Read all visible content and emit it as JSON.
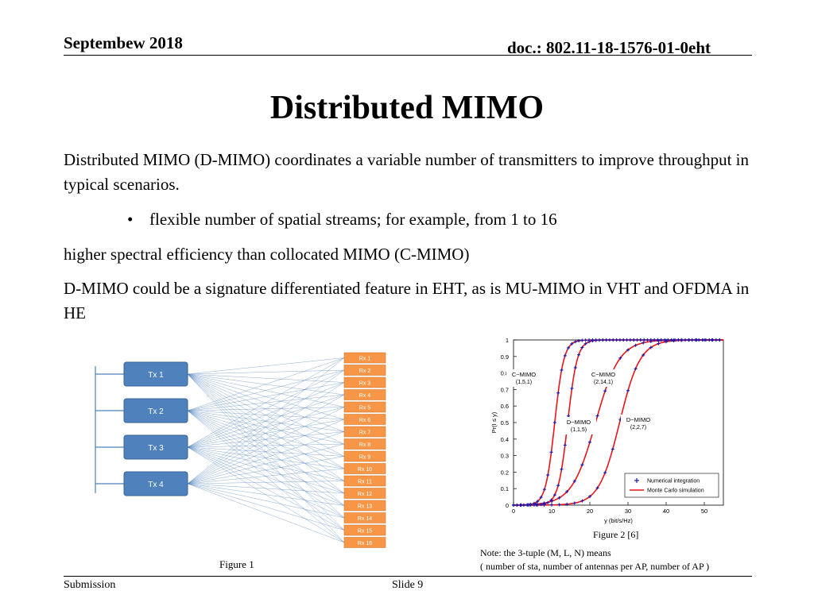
{
  "header": {
    "date": "Septembew 2018",
    "doc": "doc.: 802.11-18-1576-01-0eht"
  },
  "title": "Distributed MIMO",
  "body": {
    "p1": "Distributed MIMO (D-MIMO) coordinates a variable number of transmitters to improve throughput in typical scenarios.",
    "bullet": "flexible number of spatial streams; for example, from 1 to 16",
    "bullet_marker": "•",
    "p2": "higher spectral efficiency than collocated MIMO (C-MIMO)",
    "p3": "D-MIMO could be a signature differentiated feature in EHT, as is MU-MIMO in VHT and OFDMA in HE"
  },
  "figure1": {
    "caption": "Figure 1",
    "tx": [
      "Tx 1",
      "Tx 2",
      "Tx 3",
      "Tx 4"
    ],
    "rx": [
      "Rx 1",
      "Rx 2",
      "Rx 3",
      "Rx 4",
      "Rx 5",
      "Rx 6",
      "Rx 7",
      "Rx 8",
      "Rx 9",
      "Rx 10",
      "Rx 11",
      "Rx 12",
      "Rx 13",
      "Rx 14",
      "Rx 15",
      "Rx 16"
    ],
    "colors": {
      "tx": "#4f81bd",
      "rx": "#f79646",
      "lines": "#4f81bd"
    }
  },
  "figure2": {
    "caption": "Figure 2 [6]",
    "note_line1": "Note: the 3-tuple (M, L, N) means",
    "note_line2": "( number of sta, number of antennas per AP, number of AP )"
  },
  "chart_data": {
    "type": "line",
    "xlabel": "y (bit/s/Hz)",
    "ylabel": "Pr(I ≤ y)",
    "xlim": [
      0,
      55
    ],
    "ylim": [
      0,
      1
    ],
    "xticks": [
      "0",
      "10",
      "20",
      "30",
      "40",
      "50"
    ],
    "yticks": [
      "0",
      "0.1",
      "0.2",
      "0.3",
      "0.4",
      "0.5",
      "0.6",
      "0.7",
      "0.8",
      "0.9",
      "1"
    ],
    "legend": {
      "placement": "bottom-right",
      "entries": [
        "Numerical integration",
        "Monte Carlo simulation"
      ]
    },
    "colors": {
      "simulation": "#e8161b",
      "numerical": "#1a1ab4"
    },
    "series": [
      {
        "label": [
          "C−MIMO",
          "(1,5,1)"
        ],
        "mean": 10.8,
        "scale": 1.2
      },
      {
        "label": [
          "C−MIMO",
          "(2,14,1)"
        ],
        "mean": 14.2,
        "scale": 1.25
      },
      {
        "label": [
          "D−MIMO",
          "(1,1,5)"
        ],
        "mean": 21.5,
        "scale": 3.1
      },
      {
        "label": [
          "D−MIMO",
          "(2,2,7)"
        ],
        "mean": 27.8,
        "scale": 2.7
      }
    ]
  },
  "footer": {
    "left": "Submission",
    "center": "Slide 9"
  }
}
